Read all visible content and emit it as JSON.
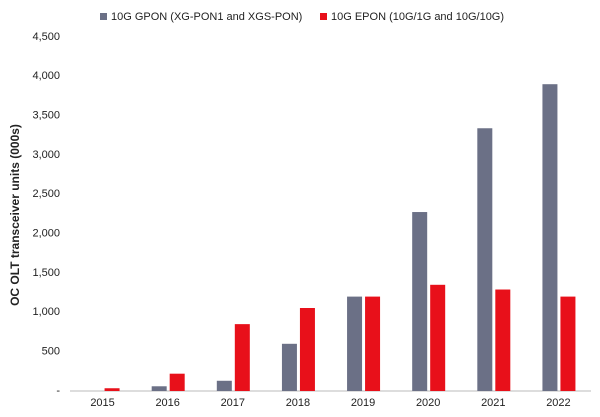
{
  "chart_data": {
    "type": "bar",
    "y_label": "OC OLT transceiver units (000s)",
    "categories": [
      "2015",
      "2016",
      "2017",
      "2018",
      "2019",
      "2020",
      "2021",
      "2022"
    ],
    "series": [
      {
        "name": "10G GPON (XG-PON1 and XGS-PON)",
        "color": "#6b7086",
        "values": [
          0,
          60,
          130,
          600,
          1200,
          2275,
          3340,
          3900
        ]
      },
      {
        "name": "10G EPON (10G/1G and 10G/10G)",
        "color": "#e8101a",
        "values": [
          35,
          220,
          850,
          1055,
          1200,
          1350,
          1290,
          1200
        ]
      }
    ],
    "ylim": [
      0,
      4500
    ],
    "yticks": [
      {
        "value": 0,
        "label": "-"
      },
      500,
      {
        "value": 1000,
        "label": "1,000"
      },
      {
        "value": 1500,
        "label": "1,500"
      },
      {
        "value": 2000,
        "label": "2,000"
      },
      {
        "value": 2500,
        "label": "2,500"
      },
      {
        "value": 3000,
        "label": "3,000"
      },
      {
        "value": 3500,
        "label": "3,500"
      },
      {
        "value": 4000,
        "label": "4,000"
      },
      {
        "value": 4500,
        "label": "4,500"
      }
    ],
    "grid": false
  }
}
